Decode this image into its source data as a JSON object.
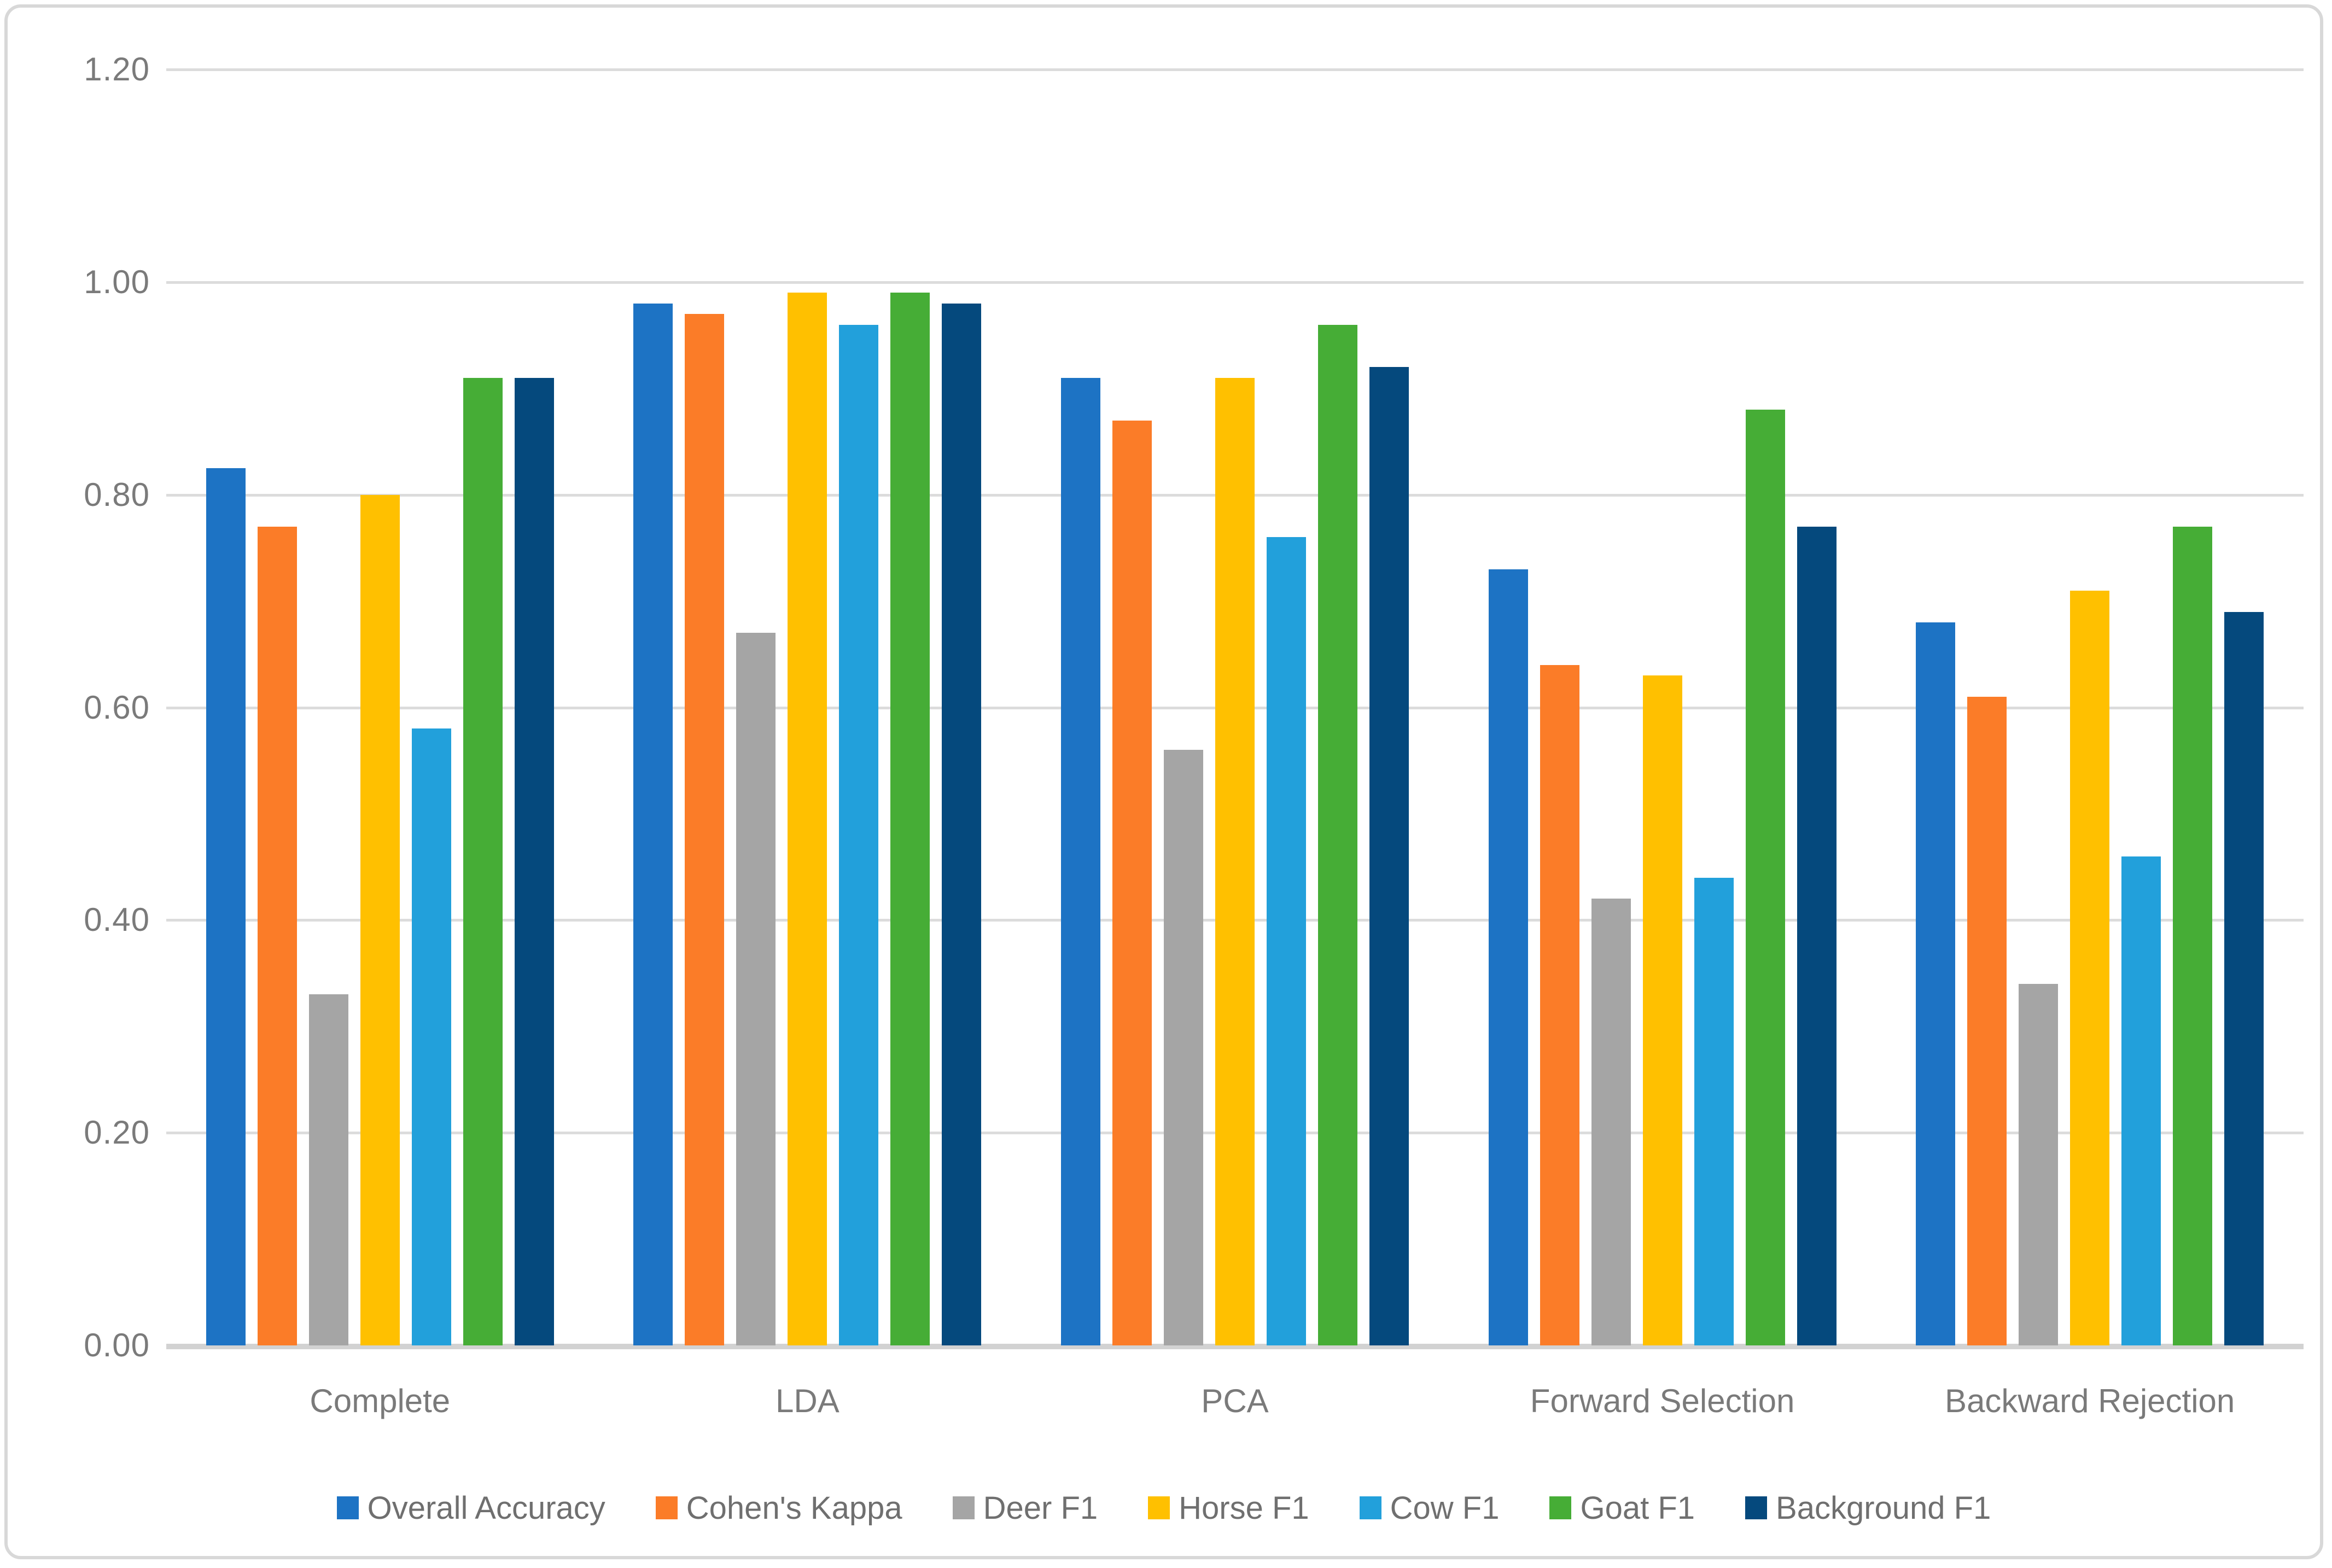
{
  "chart_data": {
    "type": "bar",
    "title": "",
    "xlabel": "",
    "ylabel": "",
    "categories": [
      "Complete",
      "LDA",
      "PCA",
      "Forward Selection",
      "Backward Rejection"
    ],
    "series": [
      {
        "name": "Overall Accuracy",
        "color": "#1d73c4",
        "values": [
          0.825,
          0.98,
          0.91,
          0.73,
          0.68
        ]
      },
      {
        "name": "Cohen's Kappa",
        "color": "#fb7c28",
        "values": [
          0.77,
          0.97,
          0.87,
          0.64,
          0.61
        ]
      },
      {
        "name": "Deer F1",
        "color": "#a5a5a5",
        "values": [
          0.33,
          0.67,
          0.56,
          0.42,
          0.34
        ]
      },
      {
        "name": "Horse F1",
        "color": "#ffc000",
        "values": [
          0.8,
          0.99,
          0.91,
          0.63,
          0.71
        ]
      },
      {
        "name": "Cow F1",
        "color": "#22a0db",
        "values": [
          0.58,
          0.96,
          0.76,
          0.44,
          0.46
        ]
      },
      {
        "name": "Goat F1",
        "color": "#46ad36",
        "values": [
          0.91,
          0.99,
          0.96,
          0.88,
          0.77
        ]
      },
      {
        "name": "Background F1",
        "color": "#05497d",
        "values": [
          0.91,
          0.98,
          0.92,
          0.77,
          0.69
        ]
      }
    ],
    "y_axis": {
      "min": 0,
      "max": 1.2,
      "step": 0.2,
      "tick_labels": [
        "0.00",
        "0.20",
        "0.40",
        "0.60",
        "0.80",
        "1.00",
        "1.20"
      ]
    },
    "grid": true,
    "legend_position": "bottom",
    "colors": {
      "gridline": "#dcdcdc",
      "axis_line": "#d2d2d2",
      "tick_text": "#7a7a7a",
      "frame_border": "#d8d8d8",
      "background": "#ffffff"
    }
  }
}
